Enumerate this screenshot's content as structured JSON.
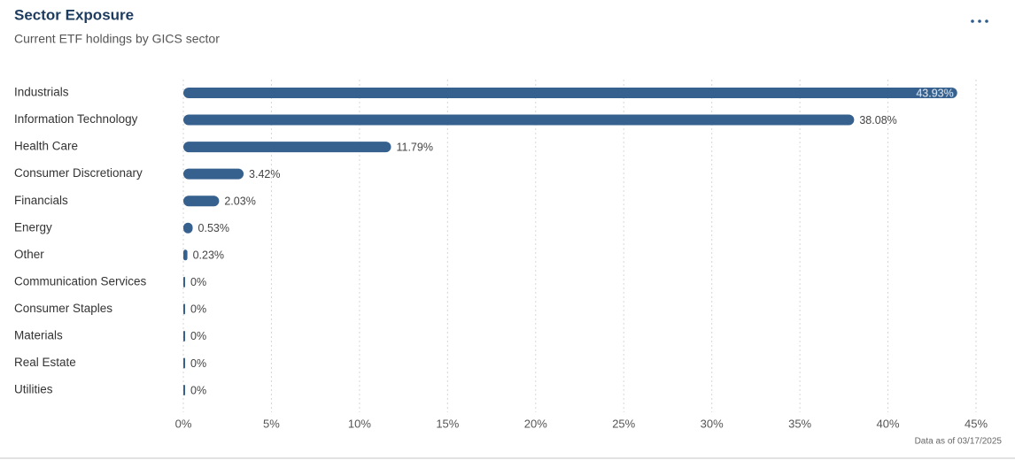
{
  "chart_data": {
    "type": "bar",
    "orientation": "horizontal",
    "title": "Sector Exposure",
    "subtitle": "Current ETF holdings by GICS sector",
    "footnote": "Data as of 03/17/2025",
    "color": "#36618e",
    "grid": true,
    "categories": [
      "Industrials",
      "Information Technology",
      "Health Care",
      "Consumer Discretionary",
      "Financials",
      "Energy",
      "Other",
      "Communication Services",
      "Consumer Staples",
      "Materials",
      "Real Estate",
      "Utilities"
    ],
    "values": [
      43.93,
      38.08,
      11.79,
      3.42,
      2.03,
      0.53,
      0.23,
      0,
      0,
      0,
      0,
      0
    ],
    "value_labels": [
      "43.93%",
      "38.08%",
      "11.79%",
      "3.42%",
      "2.03%",
      "0.53%",
      "0.23%",
      "0%",
      "0%",
      "0%",
      "0%",
      "0%"
    ],
    "xlim": [
      0,
      45
    ],
    "xticks": [
      {
        "value": 0,
        "label": "0%"
      },
      {
        "value": 5,
        "label": "5%"
      },
      {
        "value": 10,
        "label": "10%"
      },
      {
        "value": 15,
        "label": "15%"
      },
      {
        "value": 20,
        "label": "20%"
      },
      {
        "value": 25,
        "label": "25%"
      },
      {
        "value": 30,
        "label": "30%"
      },
      {
        "value": 35,
        "label": "35%"
      },
      {
        "value": 40,
        "label": "40%"
      },
      {
        "value": 45,
        "label": "45%"
      }
    ]
  }
}
